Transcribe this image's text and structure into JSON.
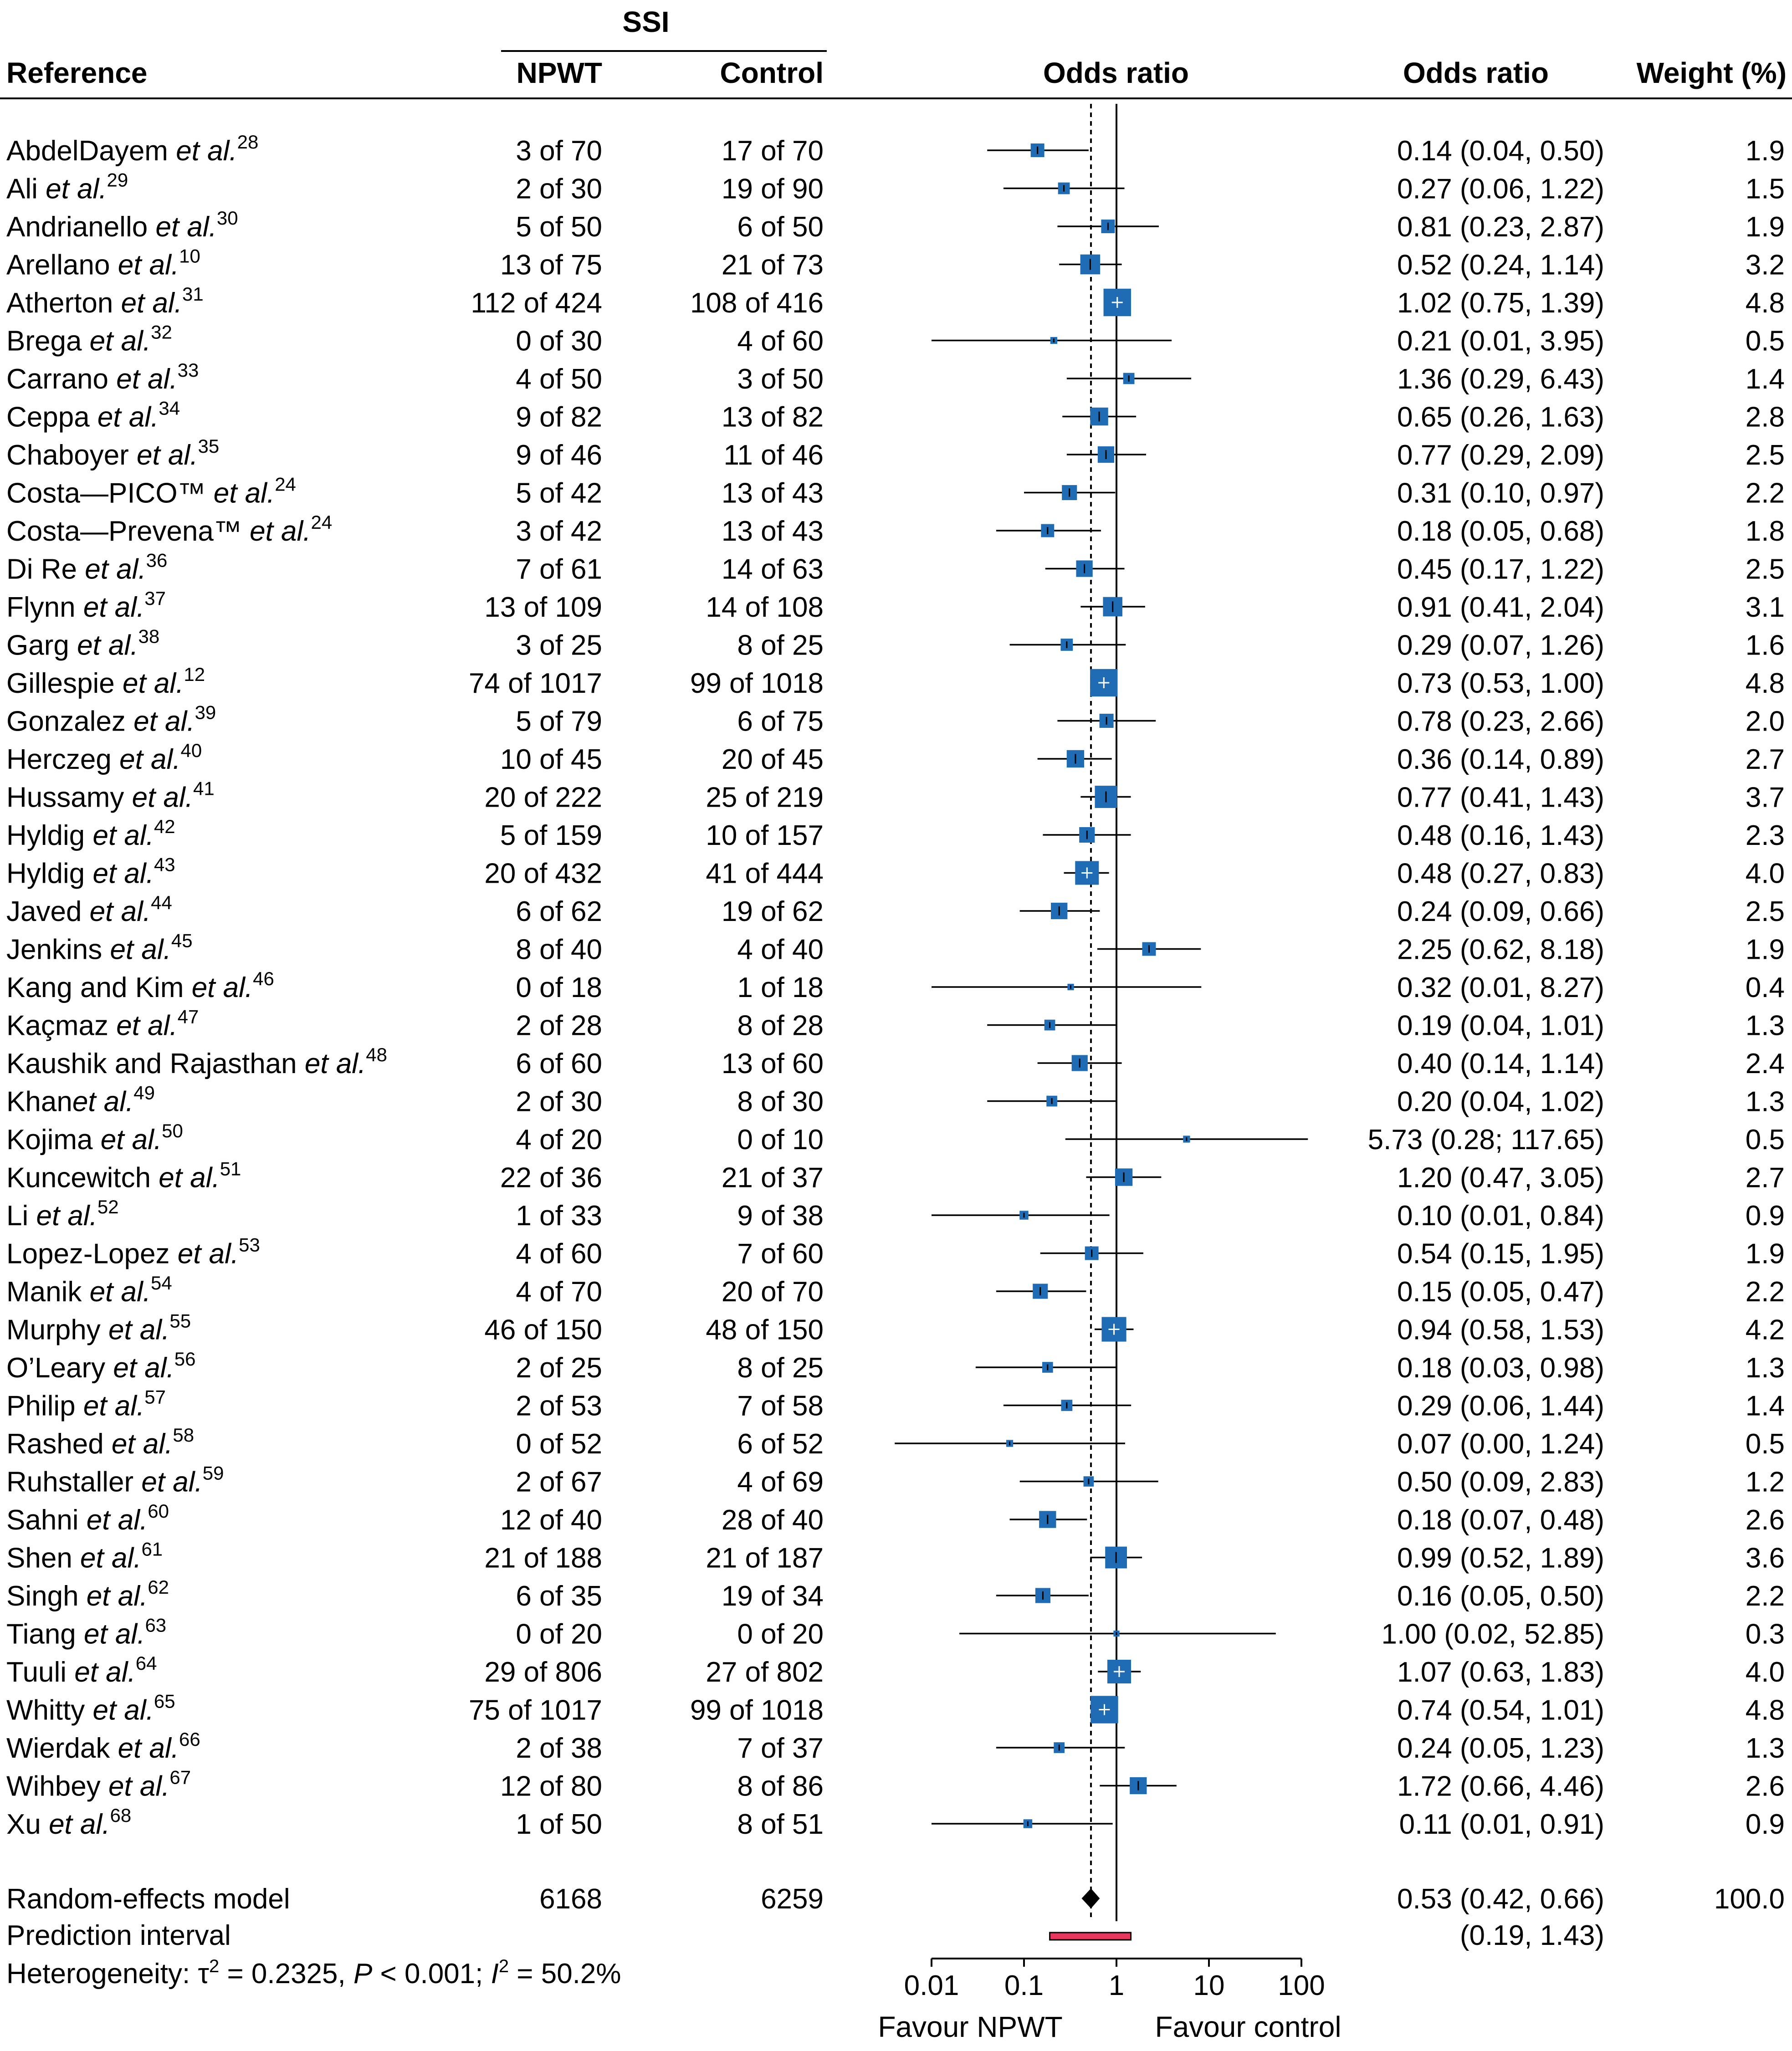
{
  "headers": {
    "reference": "Reference",
    "ssi": "SSI",
    "npwt": "NPWT",
    "control": "Control",
    "plot": "Odds ratio",
    "or_col": "Odds ratio",
    "weight": "Weight (%)"
  },
  "colors": {
    "square": "#1F6CB4",
    "prediction_bar": "#E8375D",
    "line": "#000000"
  },
  "chart_data": {
    "type": "forest",
    "xscale": "log",
    "xlim": [
      0.01,
      100
    ],
    "xticks": [
      0.01,
      0.1,
      1,
      10,
      100
    ],
    "xtick_labels": [
      "0.01",
      "0.1",
      "1",
      "10",
      "100"
    ],
    "null_value": 1,
    "pooled_reference_line": 0.53,
    "direction_labels": {
      "left": "Favour NPWT",
      "right": "Favour control"
    },
    "studies": [
      {
        "name": "AbdelDayem",
        "etal": " et al.",
        "ref": "28",
        "npwt": "3 of 70",
        "control": "17 of 70",
        "or": 0.14,
        "lo": 0.04,
        "hi": 0.5,
        "ci_text": "0.14 (0.04, 0.50)",
        "weight": 1.9,
        "weight_text": "1.9"
      },
      {
        "name": "Ali",
        "etal": " et al.",
        "ref": "29",
        "npwt": "2 of 30",
        "control": "19 of 90",
        "or": 0.27,
        "lo": 0.06,
        "hi": 1.22,
        "ci_text": "0.27 (0.06, 1.22)",
        "weight": 1.5,
        "weight_text": "1.5"
      },
      {
        "name": "Andrianello",
        "etal": " et al.",
        "ref": "30",
        "npwt": "5 of 50",
        "control": "6 of 50",
        "or": 0.81,
        "lo": 0.23,
        "hi": 2.87,
        "ci_text": "0.81 (0.23, 2.87)",
        "weight": 1.9,
        "weight_text": "1.9"
      },
      {
        "name": "Arellano",
        "etal": " et al.",
        "ref": "10",
        "npwt": "13 of 75",
        "control": "21 of 73",
        "or": 0.52,
        "lo": 0.24,
        "hi": 1.14,
        "ci_text": "0.52 (0.24, 1.14)",
        "weight": 3.2,
        "weight_text": "3.2"
      },
      {
        "name": "Atherton",
        "etal": " et al.",
        "ref": "31",
        "npwt": "112 of 424",
        "control": "108 of 416",
        "or": 1.02,
        "lo": 0.75,
        "hi": 1.39,
        "ci_text": "1.02 (0.75, 1.39)",
        "weight": 4.8,
        "weight_text": "4.8"
      },
      {
        "name": "Brega",
        "etal": " et al.",
        "ref": "32",
        "npwt": "0 of 30",
        "control": "4 of 60",
        "or": 0.21,
        "lo": 0.01,
        "hi": 3.95,
        "ci_text": "0.21 (0.01, 3.95)",
        "weight": 0.5,
        "weight_text": "0.5"
      },
      {
        "name": "Carrano",
        "etal": " et al.",
        "ref": "33",
        "npwt": "4 of 50",
        "control": "3 of 50",
        "or": 1.36,
        "lo": 0.29,
        "hi": 6.43,
        "ci_text": "1.36 (0.29, 6.43)",
        "weight": 1.4,
        "weight_text": "1.4"
      },
      {
        "name": "Ceppa",
        "etal": " et al.",
        "ref": "34",
        "npwt": "9 of 82",
        "control": "13 of 82",
        "or": 0.65,
        "lo": 0.26,
        "hi": 1.63,
        "ci_text": "0.65 (0.26, 1.63)",
        "weight": 2.8,
        "weight_text": "2.8"
      },
      {
        "name": "Chaboyer",
        "etal": " et al.",
        "ref": "35",
        "npwt": "9 of 46",
        "control": "11 of 46",
        "or": 0.77,
        "lo": 0.29,
        "hi": 2.09,
        "ci_text": "0.77 (0.29, 2.09)",
        "weight": 2.5,
        "weight_text": "2.5"
      },
      {
        "name": "Costa—PICO™",
        "etal": " et al.",
        "ref": "24",
        "npwt": "5 of 42",
        "control": "13 of 43",
        "or": 0.31,
        "lo": 0.1,
        "hi": 0.97,
        "ci_text": "0.31 (0.10, 0.97)",
        "weight": 2.2,
        "weight_text": "2.2"
      },
      {
        "name": "Costa—Prevena™",
        "etal": " et al.",
        "ref": "24",
        "npwt": "3 of 42",
        "control": "13 of 43",
        "or": 0.18,
        "lo": 0.05,
        "hi": 0.68,
        "ci_text": "0.18 (0.05, 0.68)",
        "weight": 1.8,
        "weight_text": "1.8"
      },
      {
        "name": "Di Re",
        "etal": " et al.",
        "ref": "36",
        "npwt": "7 of 61",
        "control": "14 of 63",
        "or": 0.45,
        "lo": 0.17,
        "hi": 1.22,
        "ci_text": "0.45 (0.17, 1.22)",
        "weight": 2.5,
        "weight_text": "2.5"
      },
      {
        "name": "Flynn",
        "etal": " et al.",
        "ref": "37",
        "npwt": "13 of 109",
        "control": "14 of 108",
        "or": 0.91,
        "lo": 0.41,
        "hi": 2.04,
        "ci_text": "0.91 (0.41, 2.04)",
        "weight": 3.1,
        "weight_text": "3.1"
      },
      {
        "name": "Garg",
        "etal": " et al.",
        "ref": "38",
        "npwt": "3 of 25",
        "control": "8 of 25",
        "or": 0.29,
        "lo": 0.07,
        "hi": 1.26,
        "ci_text": "0.29 (0.07, 1.26)",
        "weight": 1.6,
        "weight_text": "1.6"
      },
      {
        "name": "Gillespie",
        "etal": " et al.",
        "ref": "12",
        "npwt": "74 of 1017",
        "control": "99 of 1018",
        "or": 0.73,
        "lo": 0.53,
        "hi": 1.0,
        "ci_text": "0.73 (0.53, 1.00)",
        "weight": 4.8,
        "weight_text": "4.8"
      },
      {
        "name": "Gonzalez",
        "etal": " et al.",
        "ref": "39",
        "npwt": "5 of 79",
        "control": "6 of 75",
        "or": 0.78,
        "lo": 0.23,
        "hi": 2.66,
        "ci_text": "0.78 (0.23, 2.66)",
        "weight": 2.0,
        "weight_text": "2.0"
      },
      {
        "name": "Herczeg",
        "etal": " et al.",
        "ref": "40",
        "npwt": "10 of 45",
        "control": "20 of 45",
        "or": 0.36,
        "lo": 0.14,
        "hi": 0.89,
        "ci_text": "0.36 (0.14, 0.89)",
        "weight": 2.7,
        "weight_text": "2.7"
      },
      {
        "name": "Hussamy",
        "etal": " et al.",
        "ref": "41",
        "npwt": "20 of 222",
        "control": "25 of 219",
        "or": 0.77,
        "lo": 0.41,
        "hi": 1.43,
        "ci_text": "0.77 (0.41, 1.43)",
        "weight": 3.7,
        "weight_text": "3.7"
      },
      {
        "name": "Hyldig",
        "etal": " et al.",
        "ref": "42",
        "npwt": "5 of 159",
        "control": "10 of 157",
        "or": 0.48,
        "lo": 0.16,
        "hi": 1.43,
        "ci_text": "0.48 (0.16, 1.43)",
        "weight": 2.3,
        "weight_text": "2.3"
      },
      {
        "name": "Hyldig",
        "etal": " et al.",
        "ref": "43",
        "npwt": "20 of 432",
        "control": "41 of 444",
        "or": 0.48,
        "lo": 0.27,
        "hi": 0.83,
        "ci_text": "0.48 (0.27, 0.83)",
        "weight": 4.0,
        "weight_text": "4.0"
      },
      {
        "name": "Javed",
        "etal": " et al.",
        "ref": "44",
        "npwt": "6 of 62",
        "control": "19 of 62",
        "or": 0.24,
        "lo": 0.09,
        "hi": 0.66,
        "ci_text": "0.24 (0.09, 0.66)",
        "weight": 2.5,
        "weight_text": "2.5"
      },
      {
        "name": "Jenkins",
        "etal": " et al.",
        "ref": "45",
        "npwt": "8 of 40",
        "control": "4 of 40",
        "or": 2.25,
        "lo": 0.62,
        "hi": 8.18,
        "ci_text": "2.25 (0.62, 8.18)",
        "weight": 1.9,
        "weight_text": "1.9"
      },
      {
        "name": "Kang and Kim",
        "etal": " et al.",
        "ref": "46",
        "npwt": "0 of 18",
        "control": "1 of 18",
        "or": 0.32,
        "lo": 0.01,
        "hi": 8.27,
        "ci_text": "0.32 (0.01, 8.27)",
        "weight": 0.4,
        "weight_text": "0.4"
      },
      {
        "name": "Kaçmaz",
        "etal": " et al.",
        "ref": "47",
        "npwt": "2 of 28",
        "control": "8 of 28",
        "or": 0.19,
        "lo": 0.04,
        "hi": 1.01,
        "ci_text": "0.19 (0.04, 1.01)",
        "weight": 1.3,
        "weight_text": "1.3"
      },
      {
        "name": "Kaushik and Rajasthan",
        "etal": " et al.",
        "ref": "48",
        "npwt": "6 of 60",
        "control": "13 of 60",
        "or": 0.4,
        "lo": 0.14,
        "hi": 1.14,
        "ci_text": "0.40 (0.14, 1.14)",
        "weight": 2.4,
        "weight_text": "2.4"
      },
      {
        "name": "Khan",
        "etal": "et al.",
        "ref": "49",
        "npwt": "2 of 30",
        "control": "8 of 30",
        "or": 0.2,
        "lo": 0.04,
        "hi": 1.02,
        "ci_text": "0.20 (0.04, 1.02)",
        "weight": 1.3,
        "weight_text": "1.3"
      },
      {
        "name": "Kojima",
        "etal": " et al.",
        "ref": "50",
        "npwt": "4 of 20",
        "control": "0 of 10",
        "or": 5.73,
        "lo": 0.28,
        "hi": 117.65,
        "ci_text": "5.73 (0.28; 117.65)",
        "weight": 0.5,
        "weight_text": "0.5"
      },
      {
        "name": "Kuncewitch",
        "etal": " et al.",
        "ref": "51",
        "npwt": "22 of 36",
        "control": "21 of 37",
        "or": 1.2,
        "lo": 0.47,
        "hi": 3.05,
        "ci_text": "1.20 (0.47, 3.05)",
        "weight": 2.7,
        "weight_text": "2.7"
      },
      {
        "name": "Li",
        "etal": " et al.",
        "ref": "52",
        "npwt": "1 of 33",
        "control": "9 of 38",
        "or": 0.1,
        "lo": 0.01,
        "hi": 0.84,
        "ci_text": "0.10 (0.01, 0.84)",
        "weight": 0.9,
        "weight_text": "0.9"
      },
      {
        "name": "Lopez-Lopez",
        "etal": " et al.",
        "ref": "53",
        "npwt": "4 of 60",
        "control": "7 of 60",
        "or": 0.54,
        "lo": 0.15,
        "hi": 1.95,
        "ci_text": "0.54 (0.15, 1.95)",
        "weight": 1.9,
        "weight_text": "1.9"
      },
      {
        "name": "Manik",
        "etal": " et al.",
        "ref": "54",
        "npwt": "4 of 70",
        "control": "20 of 70",
        "or": 0.15,
        "lo": 0.05,
        "hi": 0.47,
        "ci_text": "0.15 (0.05, 0.47)",
        "weight": 2.2,
        "weight_text": "2.2"
      },
      {
        "name": "Murphy",
        "etal": " et al.",
        "ref": "55",
        "npwt": "46 of 150",
        "control": "48 of 150",
        "or": 0.94,
        "lo": 0.58,
        "hi": 1.53,
        "ci_text": "0.94 (0.58, 1.53)",
        "weight": 4.2,
        "weight_text": "4.2"
      },
      {
        "name": "O’Leary",
        "etal": " et al.",
        "ref": "56",
        "npwt": "2 of 25",
        "control": "8 of 25",
        "or": 0.18,
        "lo": 0.03,
        "hi": 0.98,
        "ci_text": "0.18 (0.03, 0.98)",
        "weight": 1.3,
        "weight_text": "1.3"
      },
      {
        "name": "Philip",
        "etal": " et al.",
        "ref": "57",
        "npwt": "2 of 53",
        "control": "7 of 58",
        "or": 0.29,
        "lo": 0.06,
        "hi": 1.44,
        "ci_text": "0.29 (0.06, 1.44)",
        "weight": 1.4,
        "weight_text": "1.4"
      },
      {
        "name": "Rashed",
        "etal": " et al.",
        "ref": "58",
        "npwt": "0 of 52",
        "control": "6 of 52",
        "or": 0.07,
        "lo": 0.004,
        "hi": 1.24,
        "ci_text": "0.07 (0.00, 1.24)",
        "weight": 0.5,
        "weight_text": "0.5"
      },
      {
        "name": "Ruhstaller",
        "etal": " et al.",
        "ref": "59",
        "npwt": "2 of 67",
        "control": "4 of 69",
        "or": 0.5,
        "lo": 0.09,
        "hi": 2.83,
        "ci_text": "0.50 (0.09, 2.83)",
        "weight": 1.2,
        "weight_text": "1.2"
      },
      {
        "name": "Sahni",
        "etal": " et al.",
        "ref": "60",
        "npwt": "12 of 40",
        "control": "28 of 40",
        "or": 0.18,
        "lo": 0.07,
        "hi": 0.48,
        "ci_text": "0.18 (0.07, 0.48)",
        "weight": 2.6,
        "weight_text": "2.6"
      },
      {
        "name": "Shen",
        "etal": " et al.",
        "ref": "61",
        "npwt": "21 of 188",
        "control": "21 of 187",
        "or": 0.99,
        "lo": 0.52,
        "hi": 1.89,
        "ci_text": "0.99 (0.52, 1.89)",
        "weight": 3.6,
        "weight_text": "3.6"
      },
      {
        "name": "Singh",
        "etal": " et al.",
        "ref": "62",
        "npwt": "6 of 35",
        "control": "19 of 34",
        "or": 0.16,
        "lo": 0.05,
        "hi": 0.5,
        "ci_text": "0.16 (0.05, 0.50)",
        "weight": 2.2,
        "weight_text": "2.2"
      },
      {
        "name": "Tiang",
        "etal": " et al.",
        "ref": "63",
        "npwt": "0 of 20",
        "control": "0 of 20",
        "or": 1.0,
        "lo": 0.02,
        "hi": 52.85,
        "ci_text": "1.00 (0.02, 52.85)",
        "weight": 0.3,
        "weight_text": "0.3"
      },
      {
        "name": "Tuuli",
        "etal": " et al.",
        "ref": "64",
        "npwt": "29 of 806",
        "control": "27 of 802",
        "or": 1.07,
        "lo": 0.63,
        "hi": 1.83,
        "ci_text": "1.07 (0.63, 1.83)",
        "weight": 4.0,
        "weight_text": "4.0"
      },
      {
        "name": "Whitty",
        "etal": " et al.",
        "ref": "65",
        "npwt": "75 of 1017",
        "control": "99 of 1018",
        "or": 0.74,
        "lo": 0.54,
        "hi": 1.01,
        "ci_text": "0.74 (0.54, 1.01)",
        "weight": 4.8,
        "weight_text": "4.8"
      },
      {
        "name": "Wierdak",
        "etal": " et al.",
        "ref": "66",
        "npwt": "2 of 38",
        "control": "7 of 37",
        "or": 0.24,
        "lo": 0.05,
        "hi": 1.23,
        "ci_text": "0.24 (0.05, 1.23)",
        "weight": 1.3,
        "weight_text": "1.3"
      },
      {
        "name": "Wihbey",
        "etal": " et al.",
        "ref": "67",
        "npwt": "12 of 80",
        "control": "8 of 86",
        "or": 1.72,
        "lo": 0.66,
        "hi": 4.46,
        "ci_text": "1.72 (0.66, 4.46)",
        "weight": 2.6,
        "weight_text": "2.6"
      },
      {
        "name": "Xu",
        "etal": " et al.",
        "ref": "68",
        "npwt": "1 of 50",
        "control": "8 of 51",
        "or": 0.11,
        "lo": 0.01,
        "hi": 0.91,
        "ci_text": "0.11 (0.01, 0.91)",
        "weight": 0.9,
        "weight_text": "0.9"
      }
    ],
    "pooled": {
      "label": "Random-effects model",
      "npwt_total": "6168",
      "control_total": "6259",
      "or": 0.53,
      "lo": 0.42,
      "hi": 0.66,
      "ci_text": "0.53 (0.42, 0.66)",
      "weight_text": "100.0"
    },
    "prediction": {
      "label": "Prediction interval",
      "lo": 0.19,
      "hi": 1.43,
      "ci_text": "(0.19, 1.43)"
    },
    "heterogeneity": {
      "prefix": "Heterogeneity: ",
      "tau2_text": "τ",
      "tau2_value": " = 0.2325, ",
      "p_text": "P",
      "p_value": " < 0.001; ",
      "i2_text": "I",
      "i2_value": " = 50.2%"
    }
  }
}
